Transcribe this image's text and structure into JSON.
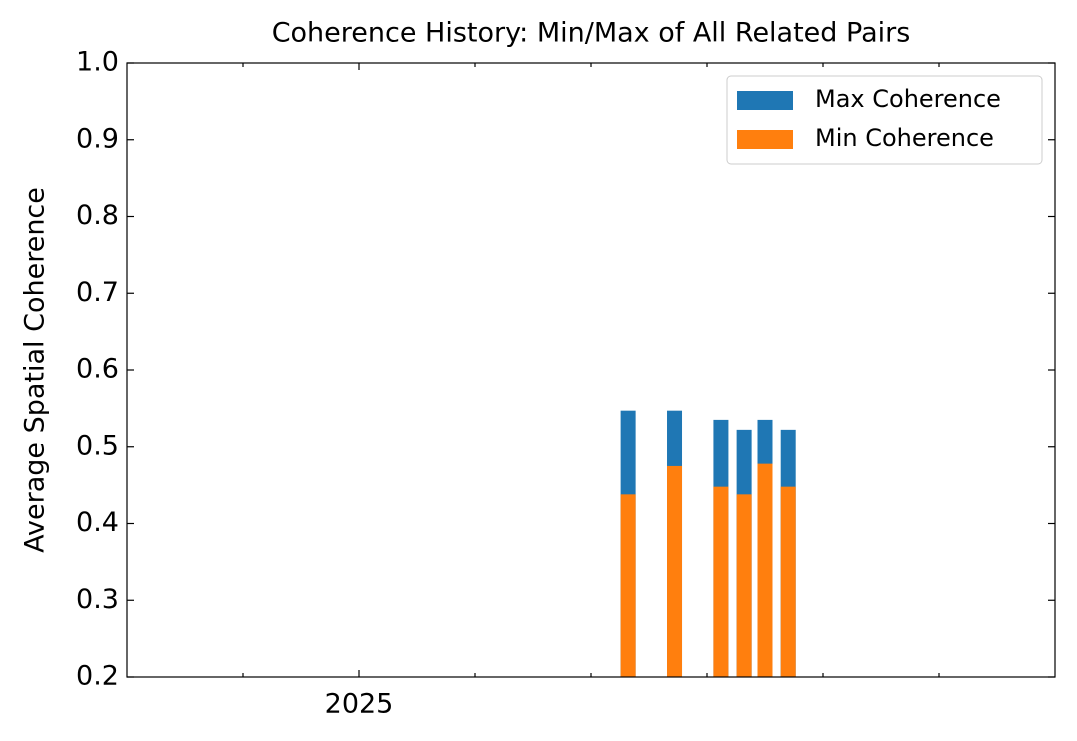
{
  "chart_data": {
    "type": "bar",
    "title": "Coherence History: Min/Max of All Related Pairs",
    "y_label": "Average Spatial Coherence",
    "x": [
      2026.16,
      2026.36,
      2026.56,
      2026.66,
      2026.75,
      2026.85
    ],
    "series": [
      {
        "name": "Max Coherence",
        "color": "#1f77b4",
        "values": [
          0.547,
          0.547,
          0.535,
          0.522,
          0.535,
          0.522
        ]
      },
      {
        "name": "Min Coherence",
        "color": "#ff7f0e",
        "values": [
          0.438,
          0.475,
          0.448,
          0.438,
          0.478,
          0.448
        ]
      }
    ],
    "xlim": [
      2024,
      2028
    ],
    "xticks": [
      2025
    ],
    "xminor_ticks": [
      2024.5,
      2025.5,
      2026,
      2026.5,
      2027,
      2027.5
    ],
    "ylim": [
      0.2,
      1
    ],
    "yticks": [
      0.2,
      0.3,
      0.4,
      0.5,
      0.6,
      0.7,
      0.8,
      0.9,
      {
        "value": 1,
        "label": "1.0"
      }
    ],
    "legend": "upper right",
    "grid": false
  }
}
